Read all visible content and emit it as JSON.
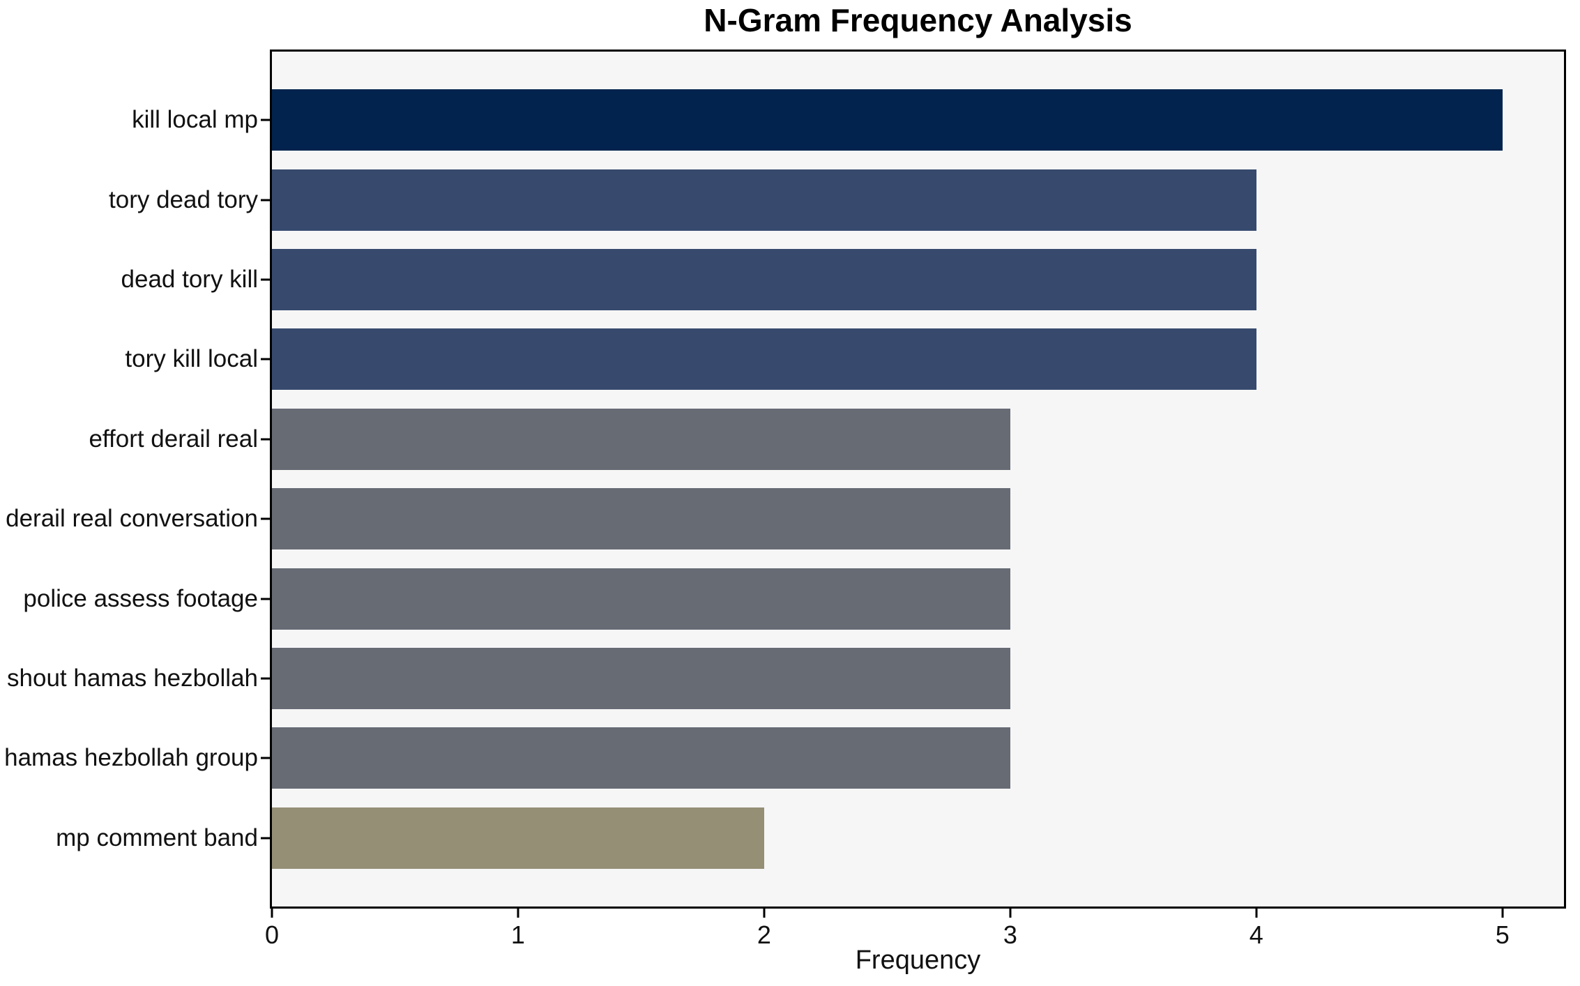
{
  "chart_data": {
    "type": "bar",
    "orientation": "horizontal",
    "title": "N-Gram Frequency Analysis",
    "xlabel": "Frequency",
    "ylabel": "",
    "categories": [
      "kill local mp",
      "tory dead tory",
      "dead tory kill",
      "tory kill local",
      "effort derail real",
      "derail real conversation",
      "police assess footage",
      "shout hamas hezbollah",
      "hamas hezbollah group",
      "mp comment band"
    ],
    "values": [
      5,
      4,
      4,
      4,
      3,
      3,
      3,
      3,
      3,
      2
    ],
    "bar_colors": [
      "#02234d",
      "#374a6e",
      "#374a6e",
      "#374a6e",
      "#666b74",
      "#666b74",
      "#666b74",
      "#666b74",
      "#666b74",
      "#948f75"
    ],
    "xticks": [
      0,
      1,
      2,
      3,
      4,
      5
    ],
    "xlim": [
      0,
      5.25
    ],
    "grid": false,
    "legend": null,
    "plot_background": "#f6f6f7",
    "figure_background": "#ffffff",
    "axis_color": "#000000",
    "text_color": "#111111"
  }
}
